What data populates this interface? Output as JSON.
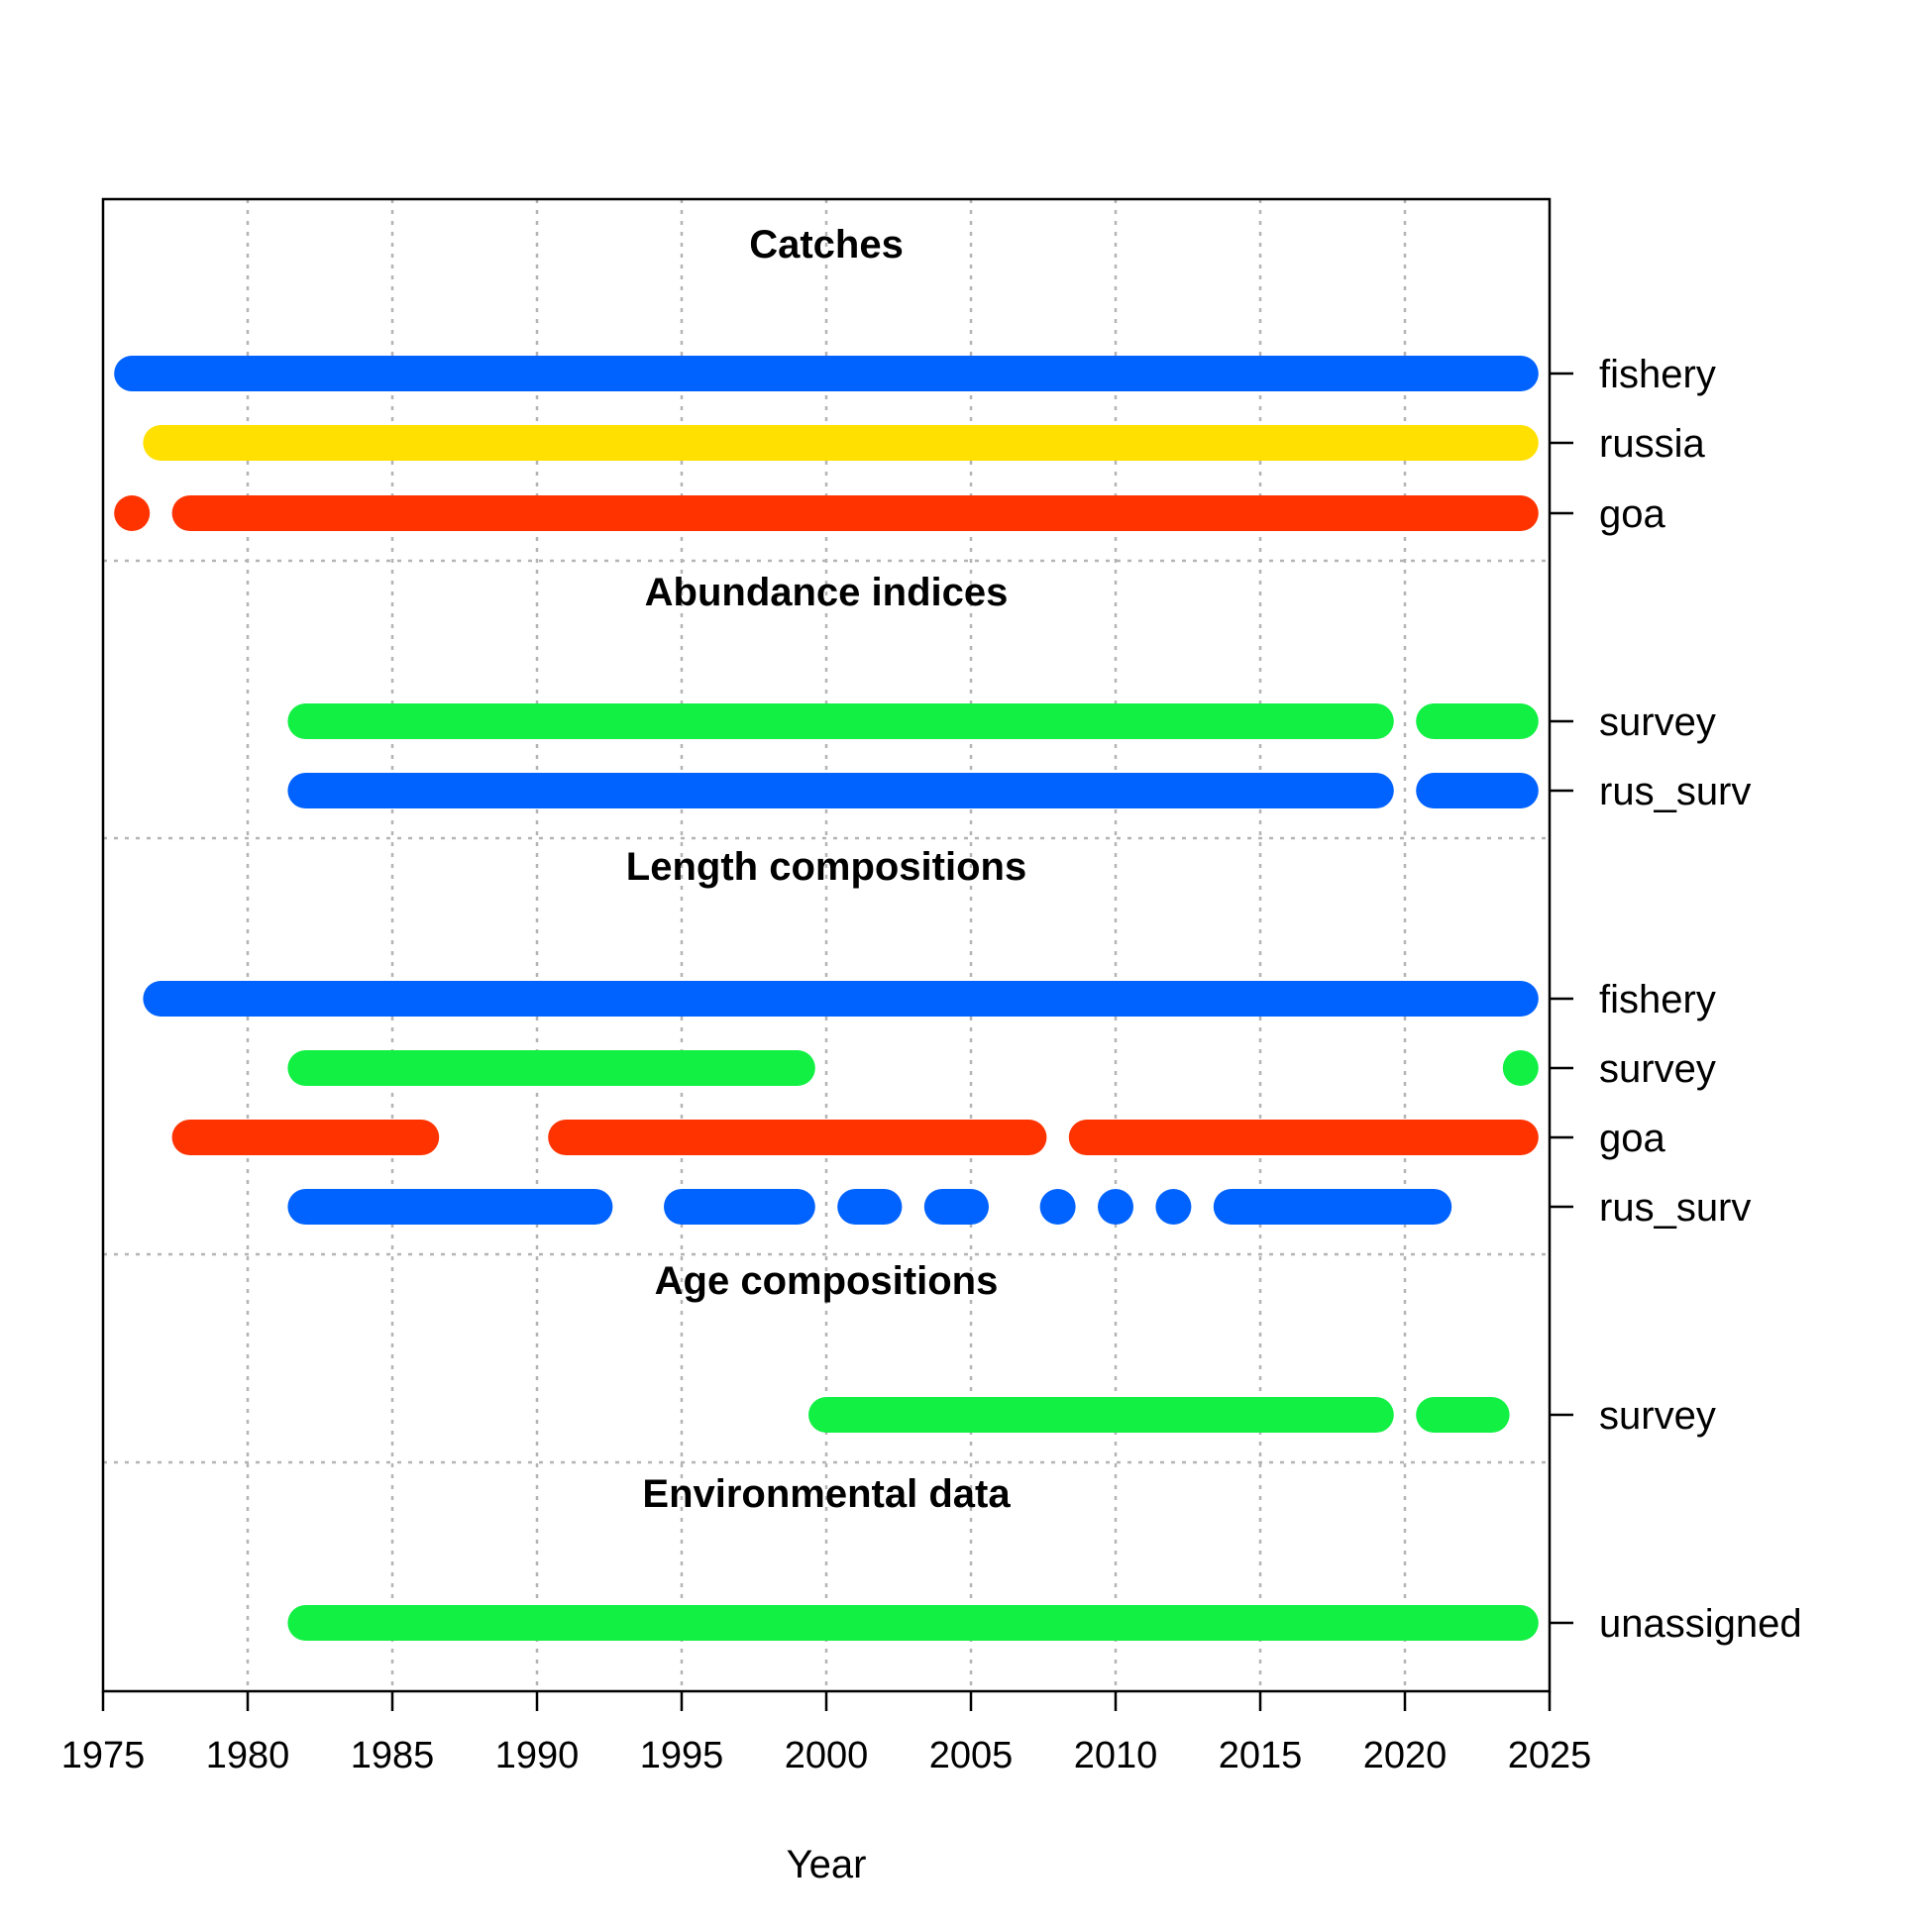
{
  "chart_data": {
    "type": "timeline",
    "xlabel": "Year",
    "xlim": [
      1975,
      2025
    ],
    "xticks": [
      1975,
      1980,
      1985,
      1990,
      1995,
      2000,
      2005,
      2010,
      2015,
      2020,
      2025
    ],
    "grid": true,
    "colors": {
      "blue": "#0062ff",
      "yellow": "#ffe000",
      "red": "#ff3300",
      "green": "#11f043"
    },
    "sections": [
      {
        "title": "Catches",
        "rows": [
          {
            "label": "fishery",
            "color": "blue",
            "segments": [
              [
                1976,
                2024
              ]
            ]
          },
          {
            "label": "russia",
            "color": "yellow",
            "segments": [
              [
                1977,
                2024
              ]
            ]
          },
          {
            "label": "goa",
            "color": "red",
            "segments": [
              [
                1976,
                1976
              ],
              [
                1978,
                2024
              ]
            ]
          }
        ]
      },
      {
        "title": "Abundance indices",
        "rows": [
          {
            "label": "survey",
            "color": "green",
            "segments": [
              [
                1982,
                2019
              ],
              [
                2021,
                2024
              ]
            ]
          },
          {
            "label": "rus_surv",
            "color": "blue",
            "segments": [
              [
                1982,
                2019
              ],
              [
                2021,
                2024
              ]
            ]
          }
        ]
      },
      {
        "title": "Length compositions",
        "rows": [
          {
            "label": "fishery",
            "color": "blue",
            "segments": [
              [
                1977,
                2024
              ]
            ]
          },
          {
            "label": "survey",
            "color": "green",
            "segments": [
              [
                1982,
                1999
              ],
              [
                2024,
                2024
              ]
            ]
          },
          {
            "label": "goa",
            "color": "red",
            "segments": [
              [
                1978,
                1986
              ],
              [
                1991,
                2007
              ],
              [
                2009,
                2024
              ]
            ]
          },
          {
            "label": "rus_surv",
            "color": "blue",
            "segments": [
              [
                1982,
                1992
              ],
              [
                1995,
                1999
              ],
              [
                2001,
                2002
              ],
              [
                2004,
                2005
              ],
              [
                2008,
                2008
              ],
              [
                2010,
                2010
              ],
              [
                2012,
                2012
              ],
              [
                2014,
                2021
              ]
            ]
          }
        ]
      },
      {
        "title": "Age compositions",
        "rows": [
          {
            "label": "survey",
            "color": "green",
            "segments": [
              [
                2000,
                2019
              ],
              [
                2021,
                2023
              ]
            ]
          }
        ]
      },
      {
        "title": "Environmental data",
        "rows": [
          {
            "label": "unassigned",
            "color": "green",
            "segments": [
              [
                1982,
                2024
              ]
            ]
          }
        ]
      }
    ]
  }
}
